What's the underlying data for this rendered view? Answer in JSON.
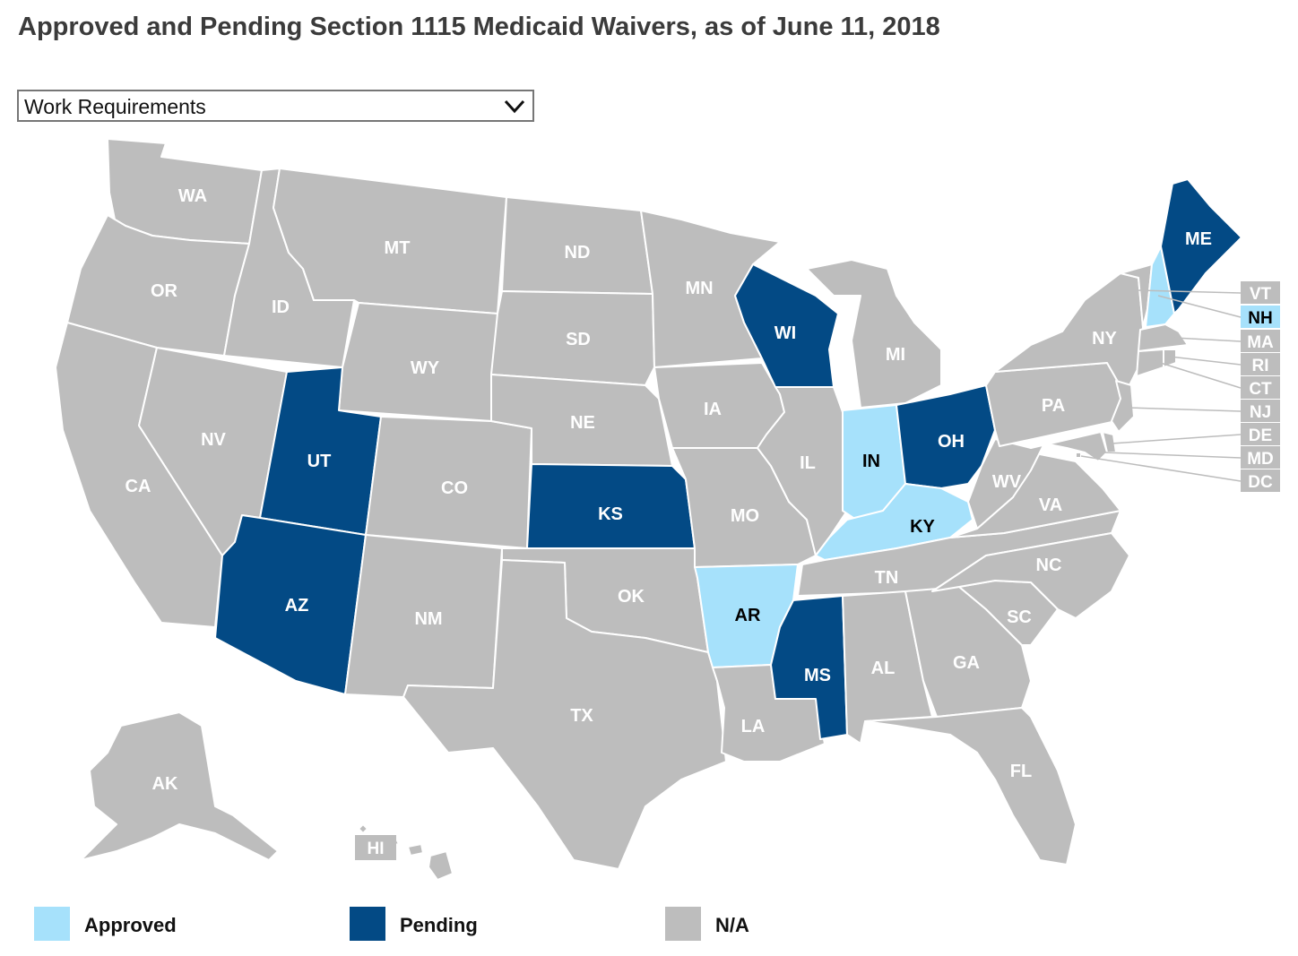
{
  "title": "Approved and Pending Section 1115 Medicaid Waivers, as of June 11, 2018",
  "dropdown": {
    "selected": "Work Requirements",
    "icon": "chevron-down-icon"
  },
  "colors": {
    "approved": "#a6e1fb",
    "pending": "#034a85",
    "na": "#bdbdbd",
    "border": "#ffffff"
  },
  "legend": [
    {
      "key": "approved",
      "label": "Approved"
    },
    {
      "key": "pending",
      "label": "Pending"
    },
    {
      "key": "na",
      "label": "N/A"
    }
  ],
  "states": {
    "WA": "na",
    "OR": "na",
    "CA": "na",
    "ID": "na",
    "NV": "na",
    "MT": "na",
    "WY": "na",
    "UT": "pending",
    "AZ": "pending",
    "CO": "na",
    "NM": "na",
    "ND": "na",
    "SD": "na",
    "NE": "na",
    "KS": "pending",
    "OK": "na",
    "TX": "na",
    "MN": "na",
    "IA": "na",
    "MO": "na",
    "AR": "approved",
    "LA": "na",
    "WI": "pending",
    "IL": "na",
    "MS": "pending",
    "MI": "na",
    "IN": "approved",
    "OH": "pending",
    "KY": "approved",
    "TN": "na",
    "AL": "na",
    "GA": "na",
    "FL": "na",
    "SC": "na",
    "NC": "na",
    "VA": "na",
    "WV": "na",
    "PA": "na",
    "NY": "na",
    "ME": "pending",
    "NH": "approved",
    "VT": "na",
    "MA": "na",
    "RI": "na",
    "CT": "na",
    "NJ": "na",
    "DE": "na",
    "MD": "na",
    "DC": "na",
    "AK": "na",
    "HI": "na"
  },
  "labels": {
    "WA": "WA",
    "OR": "OR",
    "CA": "CA",
    "ID": "ID",
    "NV": "NV",
    "MT": "MT",
    "WY": "WY",
    "UT": "UT",
    "AZ": "AZ",
    "CO": "CO",
    "NM": "NM",
    "ND": "ND",
    "SD": "SD",
    "NE": "NE",
    "KS": "KS",
    "OK": "OK",
    "TX": "TX",
    "MN": "MN",
    "IA": "IA",
    "MO": "MO",
    "AR": "AR",
    "LA": "LA",
    "WI": "WI",
    "IL": "IL",
    "MS": "MS",
    "MI": "MI",
    "IN": "IN",
    "OH": "OH",
    "KY": "KY",
    "TN": "TN",
    "AL": "AL",
    "GA": "GA",
    "FL": "FL",
    "SC": "SC",
    "NC": "NC",
    "VA": "VA",
    "WV": "WV",
    "PA": "PA",
    "NY": "NY",
    "ME": "ME",
    "AK": "AK",
    "VT": "VT",
    "NH": "NH",
    "MA": "MA",
    "RI": "RI",
    "CT": "CT",
    "NJ": "NJ",
    "DE": "DE",
    "MD": "MD",
    "DC": "DC",
    "HI": "HI"
  }
}
